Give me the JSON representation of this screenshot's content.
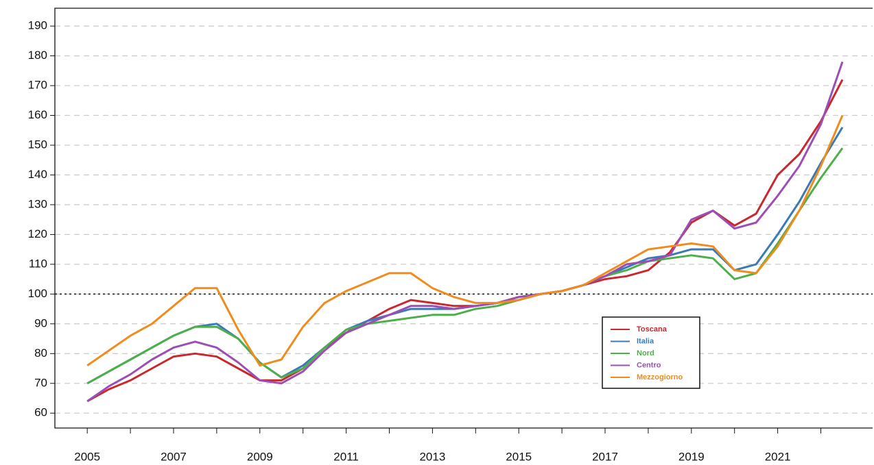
{
  "chart_data": {
    "type": "line",
    "x": [
      2005,
      2005.5,
      2006,
      2006.5,
      2007,
      2007.5,
      2008,
      2008.5,
      2009,
      2009.5,
      2010,
      2010.5,
      2011,
      2011.5,
      2012,
      2012.5,
      2013,
      2013.5,
      2014,
      2014.5,
      2015,
      2015.5,
      2016,
      2016.5,
      2017,
      2017.5,
      2018,
      2018.5,
      2019,
      2019.5,
      2020,
      2020.5,
      2021,
      2021.5,
      2022,
      2022.5
    ],
    "series": [
      {
        "name": "Toscana",
        "color": "#c8282e",
        "values": [
          64,
          68,
          71,
          75,
          79,
          80,
          79,
          75,
          71,
          71,
          75,
          82,
          87,
          91,
          95,
          98,
          97,
          96,
          96,
          97,
          99,
          100,
          101,
          103,
          105,
          106,
          108,
          114,
          124,
          128,
          123,
          127,
          140,
          147,
          158,
          172
        ]
      },
      {
        "name": "Italia",
        "color": "#3a7ab5",
        "values": [
          70,
          74,
          78,
          82,
          86,
          89,
          90,
          85,
          77,
          72,
          76,
          82,
          88,
          91,
          93,
          95,
          95,
          95,
          96,
          97,
          98,
          100,
          101,
          103,
          106,
          109,
          112,
          113,
          115,
          115,
          108,
          110,
          120,
          131,
          144,
          156
        ]
      },
      {
        "name": "Nord",
        "color": "#4daf4a",
        "values": [
          70,
          74,
          78,
          82,
          86,
          89,
          89,
          85,
          77,
          72,
          75,
          82,
          88,
          90,
          91,
          92,
          93,
          93,
          95,
          96,
          98,
          100,
          101,
          103,
          106,
          108,
          111,
          112,
          113,
          112,
          105,
          107,
          117,
          128,
          139,
          149
        ]
      },
      {
        "name": "Centro",
        "color": "#9b4fb5",
        "values": [
          64,
          69,
          73,
          78,
          82,
          84,
          82,
          77,
          71,
          70,
          74,
          81,
          87,
          90,
          93,
          96,
          96,
          95,
          96,
          97,
          99,
          100,
          101,
          103,
          106,
          110,
          111,
          113,
          125,
          128,
          122,
          124,
          133,
          143,
          157,
          178
        ]
      },
      {
        "name": "Mezzogiorno",
        "color": "#f08c1e",
        "values": [
          76,
          81,
          86,
          90,
          96,
          102,
          102,
          88,
          76,
          78,
          89,
          97,
          101,
          104,
          107,
          107,
          102,
          99,
          97,
          97,
          98,
          100,
          101,
          103,
          107,
          111,
          115,
          116,
          117,
          116,
          108,
          107,
          116,
          128,
          143,
          160
        ]
      }
    ],
    "xlim": [
      2004.25,
      2023.2
    ],
    "xticks": [
      2005,
      2007,
      2009,
      2011,
      2013,
      2015,
      2017,
      2019,
      2021
    ],
    "xminorticks": [
      2006,
      2008,
      2010,
      2012,
      2014,
      2016,
      2018,
      2020,
      2022
    ],
    "ylim": [
      55,
      196
    ],
    "yticks": [
      60,
      70,
      80,
      90,
      100,
      110,
      120,
      130,
      140,
      150,
      160,
      170,
      180,
      190
    ],
    "reference_line": 100,
    "grid": true,
    "legend_position": "center right"
  }
}
